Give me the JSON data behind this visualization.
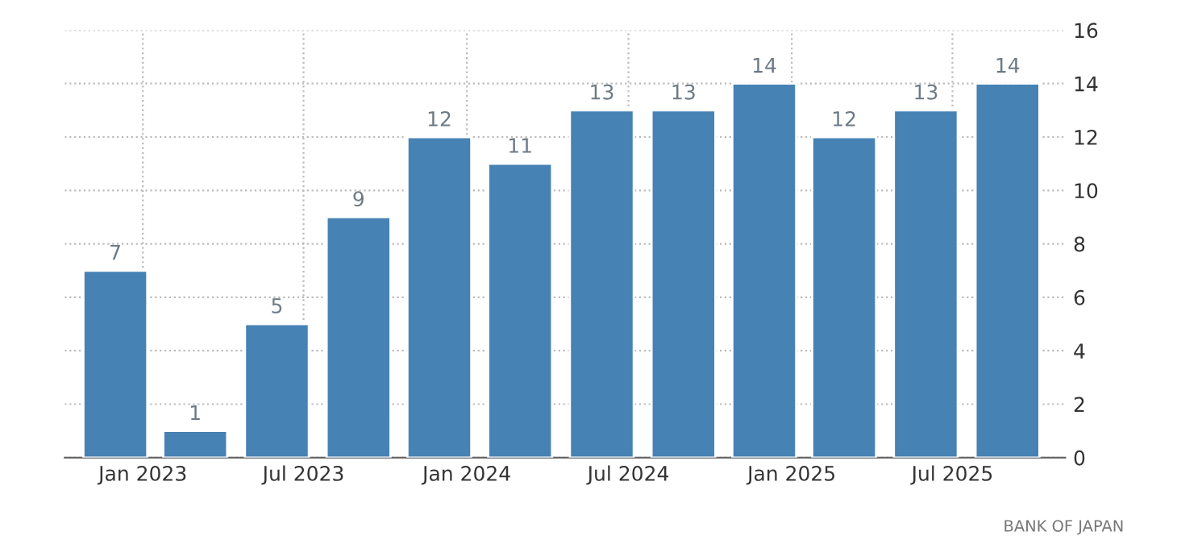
{
  "chart_data": {
    "type": "bar",
    "x": [
      "2022-12",
      "2023-03",
      "2023-06",
      "2023-09",
      "2023-12",
      "2024-03",
      "2024-06",
      "2024-09",
      "2024-12",
      "2025-03",
      "2025-06",
      "2025-09"
    ],
    "values": [
      7,
      1,
      5,
      9,
      12,
      11,
      13,
      13,
      14,
      12,
      13,
      14
    ],
    "color": "#4682b4",
    "data_labels": true,
    "xlim": [
      "2022-10-05",
      "2025-11-05"
    ],
    "xticks": [
      {
        "value": "2023-01",
        "label": "Jan 2023"
      },
      {
        "value": "2023-07",
        "label": "Jul 2023"
      },
      {
        "value": "2024-01",
        "label": "Jan 2024"
      },
      {
        "value": "2024-07",
        "label": "Jul 2024"
      },
      {
        "value": "2025-01",
        "label": "Jan 2025"
      },
      {
        "value": "2025-07",
        "label": "Jul 2025"
      }
    ],
    "ylim": [
      0,
      16
    ],
    "yticks": [
      0,
      2,
      4,
      6,
      8,
      10,
      12,
      14,
      16
    ],
    "grid": true,
    "annotations": [
      "BANK OF JAPAN"
    ]
  }
}
